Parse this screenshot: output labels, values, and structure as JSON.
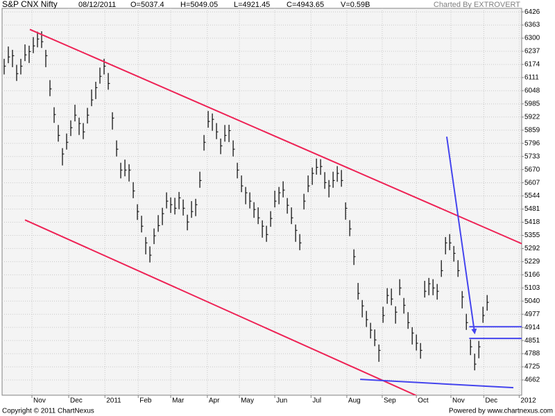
{
  "chart_data": {
    "type": "ohlc",
    "title": "S&P CNX Nifty",
    "date": "08/12/2011",
    "quote": [
      "O=5037.4",
      "H=5049.05",
      "L=4921.45",
      "C=4943.65",
      "V=0.59B"
    ],
    "credit": "Charted By EXTROVERT",
    "copyright": "Copyright © 2011 ChartNexus",
    "powered_by": "Powered by www.chartnexus.com",
    "color": "#000000",
    "grid": true,
    "xlim": [
      -0.5,
      124.3
    ],
    "xticks": [
      {
        "value": 6.67,
        "label": "Nov"
      },
      {
        "value": 15.5,
        "label": "Dec"
      },
      {
        "value": 24.2,
        "label": "2011"
      },
      {
        "value": 32.2,
        "label": "Feb"
      },
      {
        "value": 40,
        "label": "Mar"
      },
      {
        "value": 48.8,
        "label": "Apr"
      },
      {
        "value": 56.5,
        "label": "May"
      },
      {
        "value": 65,
        "label": "Jun"
      },
      {
        "value": 73.7,
        "label": "Jul"
      },
      {
        "value": 82.3,
        "label": "Aug"
      },
      {
        "value": 90.8,
        "label": "Sep"
      },
      {
        "value": 99,
        "label": "Oct"
      },
      {
        "value": 107.3,
        "label": "Nov"
      },
      {
        "value": 115.2,
        "label": "Dec"
      },
      {
        "value": 123.7,
        "label": "2012"
      }
    ],
    "ylim": [
      4589,
      6443
    ],
    "yticks": [
      6426,
      6363,
      6300,
      6237,
      6174,
      6111,
      6048,
      5985,
      5922,
      5859,
      5796,
      5733,
      5670,
      5607,
      5544,
      5481,
      5418,
      5355,
      5292,
      5229,
      5166,
      5103,
      5040,
      4977,
      4914,
      4851,
      4788,
      4725,
      4662
    ],
    "close": [
      6166,
      6210,
      6216,
      6130,
      6166,
      6220,
      6236,
      6263,
      6296,
      6283,
      6216,
      6057,
      5934,
      5834,
      5745,
      5801,
      5871,
      5931,
      5891,
      5851,
      5931,
      6004,
      6063,
      6117,
      6166,
      6083,
      5917,
      5768,
      5668,
      5668,
      5668,
      5568,
      5469,
      5399,
      5319,
      5260,
      5353,
      5402,
      5459,
      5519,
      5502,
      5485,
      5535,
      5485,
      5419,
      5469,
      5502,
      5618,
      5801,
      5901,
      5911,
      5851,
      5784,
      5834,
      5857,
      5768,
      5668,
      5592,
      5559,
      5519,
      5479,
      5439,
      5399,
      5359,
      5436,
      5519,
      5559,
      5572,
      5499,
      5439,
      5379,
      5319,
      5519,
      5592,
      5652,
      5681,
      5685,
      5608,
      5592,
      5618,
      5652,
      5618,
      5485,
      5386,
      5253,
      5077,
      5017,
      4951,
      4901,
      4854,
      4804,
      4971,
      5067,
      5050,
      4987,
      5103,
      5020,
      4937,
      4887,
      4838,
      4804,
      5087,
      5123,
      5103,
      5087,
      5186,
      5319,
      5319,
      5269,
      5186,
      5060,
      4937,
      4821,
      4738,
      4821,
      4971,
      5034
    ],
    "high": [
      6201,
      6260,
      6244,
      6172,
      6201,
      6270,
      6264,
      6305,
      6331,
      6333,
      6244,
      6099,
      5969,
      5884,
      5773,
      5843,
      5906,
      5981,
      5919,
      5893,
      5966,
      6054,
      6091,
      6159,
      6201,
      6133,
      5945,
      5810,
      5703,
      5718,
      5696,
      5610,
      5504,
      5449,
      5347,
      5302,
      5388,
      5452,
      5487,
      5561,
      5537,
      5535,
      5563,
      5527,
      5454,
      5519,
      5530,
      5660,
      5836,
      5951,
      5939,
      5893,
      5819,
      5884,
      5885,
      5810,
      5703,
      5642,
      5587,
      5561,
      5514,
      5489,
      5427,
      5401,
      5471,
      5569,
      5587,
      5614,
      5534,
      5489,
      5407,
      5361,
      5554,
      5642,
      5680,
      5723,
      5720,
      5658,
      5620,
      5660,
      5687,
      5668,
      5513,
      5428,
      5288,
      5127,
      5045,
      4993,
      4936,
      4904,
      4832,
      5013,
      5102,
      5100,
      5015,
      5145,
      5055,
      4987,
      4915,
      4880,
      4839,
      5137,
      5151,
      5145,
      5122,
      5236,
      5347,
      5361,
      5304,
      5236,
      5088,
      4979,
      4856,
      4788,
      4849,
      5013,
      5069
    ],
    "low": [
      6126,
      6180,
      6161,
      6095,
      6126,
      6190,
      6181,
      6228,
      6256,
      6253,
      6161,
      6022,
      5894,
      5804,
      5690,
      5766,
      5831,
      5901,
      5836,
      5816,
      5891,
      5974,
      6008,
      6082,
      6126,
      6053,
      5862,
      5733,
      5628,
      5638,
      5613,
      5533,
      5429,
      5369,
      5264,
      5225,
      5313,
      5372,
      5404,
      5484,
      5462,
      5455,
      5480,
      5450,
      5379,
      5439,
      5447,
      5583,
      5761,
      5871,
      5856,
      5816,
      5744,
      5804,
      5802,
      5733,
      5628,
      5562,
      5504,
      5484,
      5439,
      5409,
      5344,
      5324,
      5396,
      5489,
      5504,
      5537,
      5459,
      5409,
      5324,
      5284,
      5479,
      5562,
      5597,
      5646,
      5645,
      5578,
      5537,
      5583,
      5612,
      5588,
      5430,
      5351,
      5213,
      5047,
      4962,
      4916,
      4861,
      4824,
      4749,
      4936,
      5027,
      5020,
      4932,
      5068,
      4980,
      4907,
      4832,
      4803,
      4764,
      5057,
      5068,
      5068,
      5047,
      5156,
      5264,
      5284,
      5229,
      5156,
      5005,
      4902,
      4781,
      4708,
      4766,
      4936,
      4994
    ],
    "lines": [
      {
        "color": "#ee2255",
        "x1": 6.17,
        "y1": 6342,
        "x2": 125.7,
        "y2": 5303
      },
      {
        "color": "#ee2255",
        "x1": 5,
        "y1": 5429,
        "x2": 100.7,
        "y2": 4572
      },
      {
        "color": "#4444ee",
        "x1": 106.3,
        "y1": 5828,
        "x2": 113,
        "y2": 4887,
        "arrow": true
      },
      {
        "color": "#4444ee",
        "x1": 85.5,
        "y1": 4665,
        "x2": 122.3,
        "y2": 4625
      },
      {
        "color": "#4444ee",
        "x1": 111.7,
        "y1": 4917,
        "x2": 125.7,
        "y2": 4917
      },
      {
        "color": "#4444ee",
        "x1": 111.7,
        "y1": 4861,
        "x2": 125.7,
        "y2": 4861
      }
    ]
  }
}
